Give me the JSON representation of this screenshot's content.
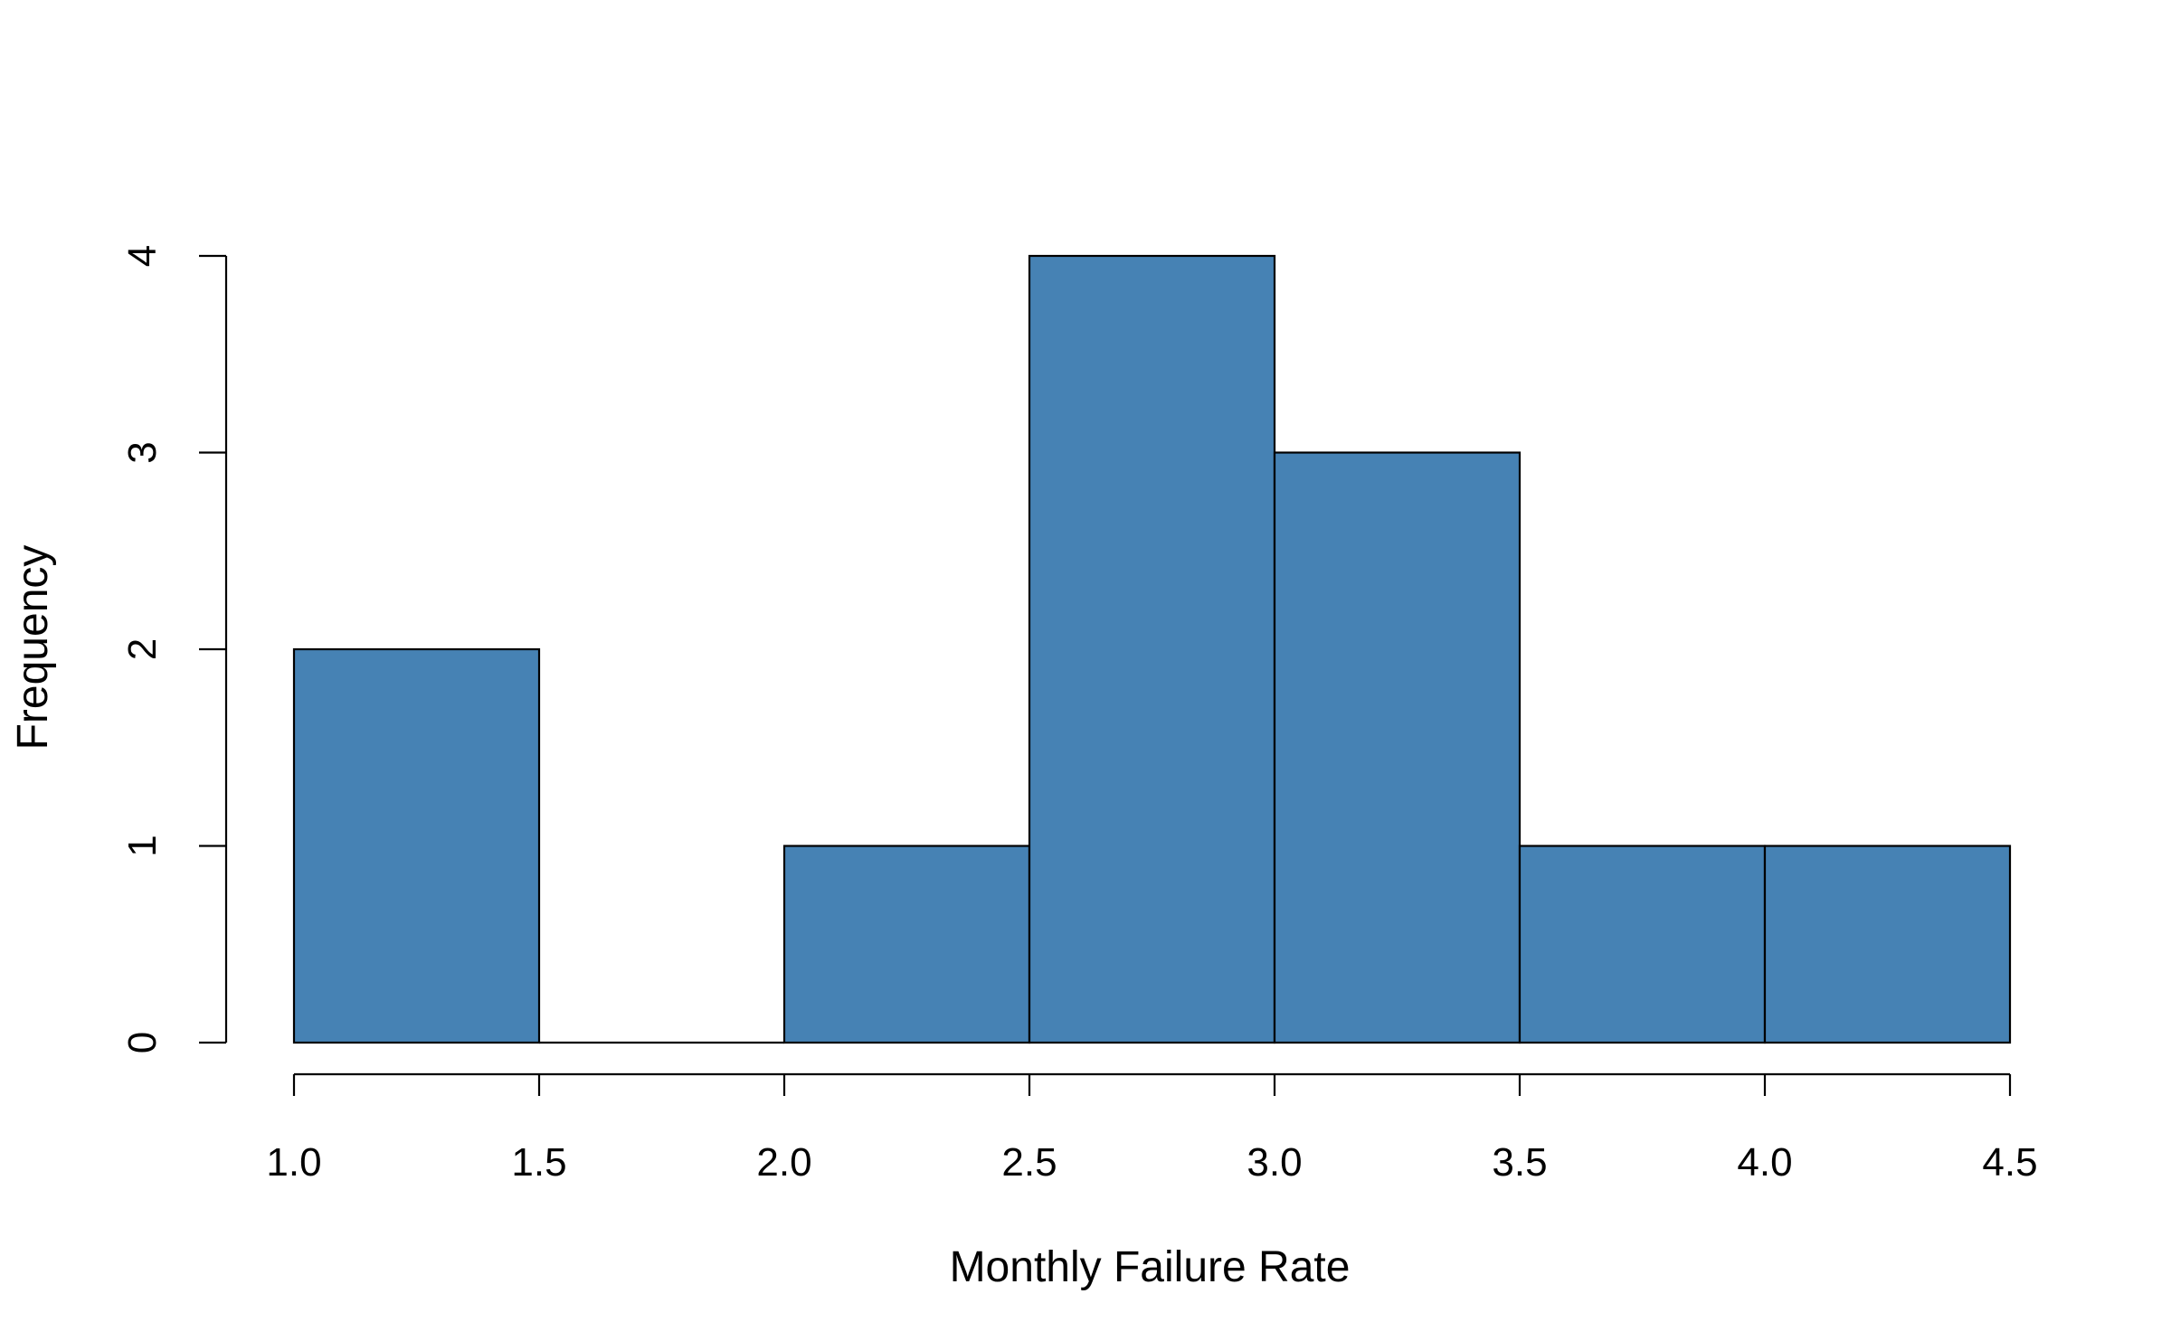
{
  "chart_data": {
    "type": "bar",
    "subtype": "histogram",
    "bins": [
      {
        "from": 1.0,
        "to": 1.5,
        "count": 2
      },
      {
        "from": 1.5,
        "to": 2.0,
        "count": 0
      },
      {
        "from": 2.0,
        "to": 2.5,
        "count": 1
      },
      {
        "from": 2.5,
        "to": 3.0,
        "count": 4
      },
      {
        "from": 3.0,
        "to": 3.5,
        "count": 3
      },
      {
        "from": 3.5,
        "to": 4.0,
        "count": 1
      },
      {
        "from": 4.0,
        "to": 4.5,
        "count": 1
      }
    ],
    "xlabel": "Monthly Failure Rate",
    "ylabel": "Frequency",
    "xlim": [
      1.0,
      4.5
    ],
    "ylim": [
      0,
      4
    ],
    "x_ticks": [
      "1.0",
      "1.5",
      "2.0",
      "2.5",
      "3.0",
      "3.5",
      "4.0",
      "4.5"
    ],
    "y_ticks": [
      "0",
      "1",
      "2",
      "3",
      "4"
    ],
    "grid": false,
    "bar_color": "#4682B4",
    "edge_color": "#000000"
  }
}
